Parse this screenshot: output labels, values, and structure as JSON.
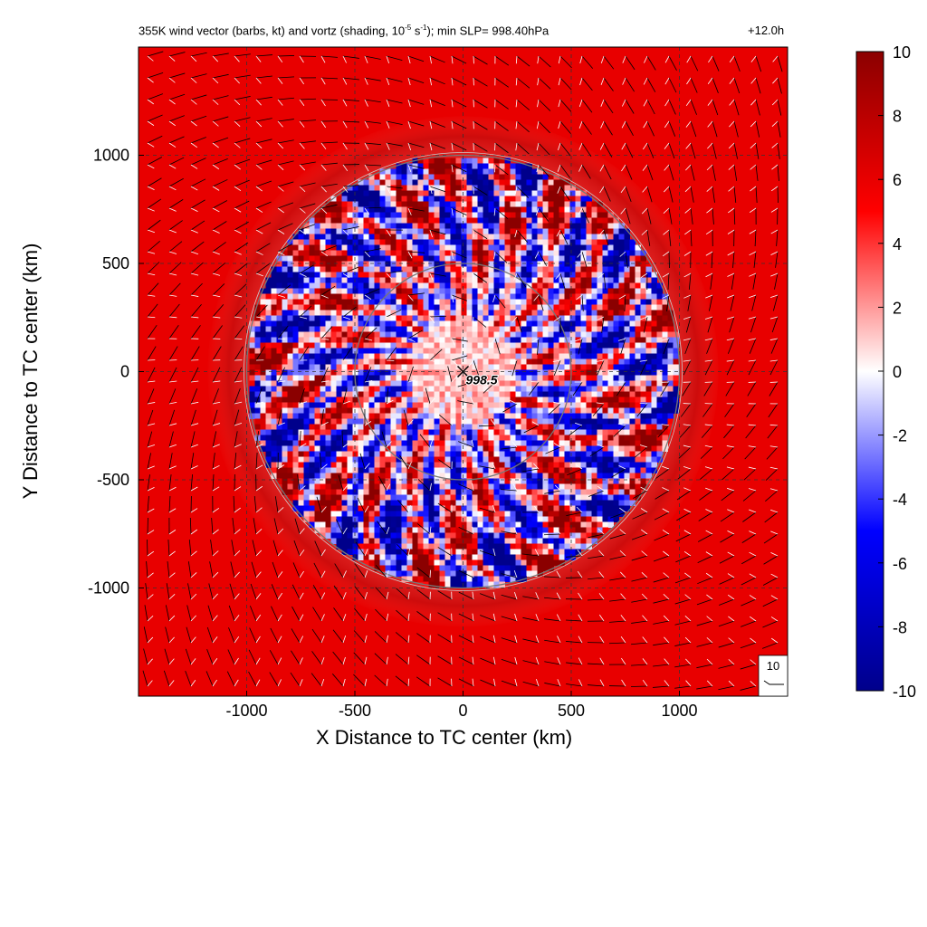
{
  "title": {
    "main_pre": "355K wind vector (barbs, kt) and vortz (shading, 10",
    "main_exp1": "-5",
    "main_mid": " s",
    "main_exp2": "-1",
    "main_post": "); min SLP= 998.40hPa",
    "time": "+12.0h"
  },
  "center_label": "998.5",
  "reference_barb_label": "10",
  "colors": {
    "negative_max": "#00008b",
    "zero": "#ffffff",
    "positive_max": "#8b0000",
    "background_field": "#f03a32"
  },
  "chart_data": {
    "type": "heatmap",
    "xlabel": "X Distance to TC center (km)",
    "ylabel": "Y Distance to TC center (km)",
    "xlim": [
      -1500,
      1500
    ],
    "ylim": [
      -1500,
      1500
    ],
    "x_ticks": [
      -1000,
      -500,
      0,
      500,
      1000
    ],
    "x_tick_labels": [
      "-1000",
      "-500",
      "0",
      "500",
      "1000"
    ],
    "y_ticks": [
      -1000,
      -500,
      0,
      500,
      1000
    ],
    "y_tick_labels": [
      "-1000",
      "-500",
      "0",
      "500",
      "1000"
    ],
    "grid": true,
    "colorbar": {
      "min": -10,
      "max": 10,
      "ticks": [
        -10,
        -8,
        -6,
        -4,
        -2,
        0,
        2,
        4,
        6,
        8,
        10
      ],
      "tick_labels": [
        "-10",
        "-8",
        "-6",
        "-4",
        "-2",
        "0",
        "2",
        "4",
        "6",
        "8",
        "10"
      ]
    },
    "range_rings_km": [
      500,
      1000
    ],
    "center": {
      "x": 0,
      "y": 0,
      "label": "998.5"
    },
    "disturbed_radius_km": 1000,
    "outer_ring_radius_km": 1150,
    "ambient_vorticity": 6
  }
}
